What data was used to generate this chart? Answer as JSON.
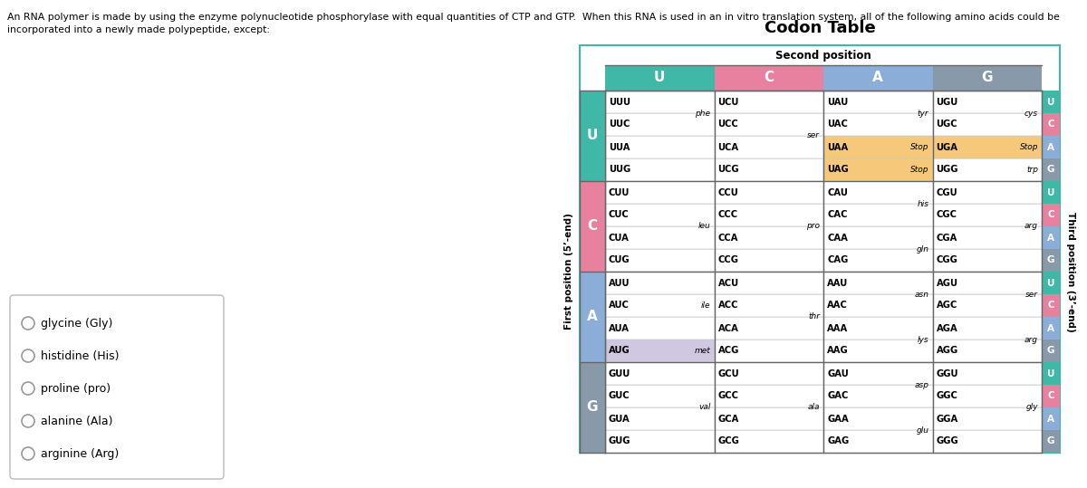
{
  "title": "Codon Table",
  "question_text": "An RNA polymer is made by using the enzyme polynucleotide phosphorylase with equal quantities of CTP and GTP.  When this RNA is used in an in vitro translation system, all of the following amino acids could be\nincorporated into a newly made polypeptide, except:",
  "second_position_label": "Second position",
  "first_position_label": "First position (5’-end)",
  "third_position_label": "Third position (3’-end)",
  "col_headers": [
    "U",
    "C",
    "A",
    "G"
  ],
  "col_header_colors": [
    "#40b8a8",
    "#e880a0",
    "#8aaed8",
    "#889aaa"
  ],
  "row_header_colors": [
    "#40b8a8",
    "#e880a0",
    "#8aaed8",
    "#889aaa"
  ],
  "third_pos_colors": [
    "#40b8a8",
    "#e880a0",
    "#8aaed8",
    "#889aaa"
  ],
  "codons": [
    [
      "UUU",
      "UUC",
      "UUA",
      "UUG"
    ],
    [
      "UCU",
      "UCC",
      "UCA",
      "UCG"
    ],
    [
      "UAU",
      "UAC",
      "UAA",
      "UAG"
    ],
    [
      "UGU",
      "UGC",
      "UGA",
      "UGG"
    ],
    [
      "CUU",
      "CUC",
      "CUA",
      "CUG"
    ],
    [
      "CCU",
      "CCC",
      "CCA",
      "CCG"
    ],
    [
      "CAU",
      "CAC",
      "CAA",
      "CAG"
    ],
    [
      "CGU",
      "CGC",
      "CGA",
      "CGG"
    ],
    [
      "AUU",
      "AUC",
      "AUA",
      "AUG"
    ],
    [
      "ACU",
      "ACC",
      "ACA",
      "ACG"
    ],
    [
      "AAU",
      "AAC",
      "AAA",
      "AAG"
    ],
    [
      "AGU",
      "AGC",
      "AGA",
      "AGG"
    ],
    [
      "GUU",
      "GUC",
      "GUA",
      "GUG"
    ],
    [
      "GCU",
      "GCC",
      "GCA",
      "GCG"
    ],
    [
      "GAU",
      "GAC",
      "GAA",
      "GAG"
    ],
    [
      "GGU",
      "GGC",
      "GGA",
      "GGG"
    ]
  ],
  "amino_acids_per_block": [
    {
      "rows": [
        0,
        1
      ],
      "aa": "phe",
      "col": 0
    },
    {
      "rows": [
        0,
        1,
        2,
        3
      ],
      "aa": "ser",
      "col": 1
    },
    {
      "rows": [
        0,
        1
      ],
      "aa": "tyr",
      "col": 2
    },
    {
      "rows": [
        2
      ],
      "aa": "Stop",
      "col": 2
    },
    {
      "rows": [
        3
      ],
      "aa": "Stop",
      "col": 2
    },
    {
      "rows": [
        0,
        1
      ],
      "aa": "cys",
      "col": 3
    },
    {
      "rows": [
        2
      ],
      "aa": "Stop",
      "col": 3
    },
    {
      "rows": [
        3
      ],
      "aa": "trp",
      "col": 3
    },
    {
      "rows": [
        0,
        1,
        2,
        3
      ],
      "aa": "leu",
      "col": 4
    },
    {
      "rows": [
        0,
        1,
        2,
        3
      ],
      "aa": "pro",
      "col": 5
    },
    {
      "rows": [
        0,
        1
      ],
      "aa": "his",
      "col": 6
    },
    {
      "rows": [
        2,
        3
      ],
      "aa": "gln",
      "col": 6
    },
    {
      "rows": [
        0,
        1,
        2,
        3
      ],
      "aa": "arg",
      "col": 7
    },
    {
      "rows": [
        0,
        1,
        2
      ],
      "aa": "ile",
      "col": 8
    },
    {
      "rows": [
        3
      ],
      "aa": "met",
      "col": 8
    },
    {
      "rows": [
        0,
        1,
        2,
        3
      ],
      "aa": "thr",
      "col": 9
    },
    {
      "rows": [
        0,
        1
      ],
      "aa": "asn",
      "col": 10
    },
    {
      "rows": [
        2,
        3
      ],
      "aa": "lys",
      "col": 10
    },
    {
      "rows": [
        0,
        1
      ],
      "aa": "ser",
      "col": 11
    },
    {
      "rows": [
        2,
        3
      ],
      "aa": "arg",
      "col": 11
    },
    {
      "rows": [
        0,
        1,
        2,
        3
      ],
      "aa": "val",
      "col": 12
    },
    {
      "rows": [
        0,
        1,
        2,
        3
      ],
      "aa": "ala",
      "col": 13
    },
    {
      "rows": [
        0,
        1
      ],
      "aa": "asp",
      "col": 14
    },
    {
      "rows": [
        2,
        3
      ],
      "aa": "glu",
      "col": 14
    },
    {
      "rows": [
        0,
        1,
        2,
        3
      ],
      "aa": "gly",
      "col": 15
    }
  ],
  "stop_highlight_codons": [
    "UAA",
    "UAG",
    "UGA"
  ],
  "aug_codon": "AUG",
  "choices": [
    "glycine (Gly)",
    "histidine (His)",
    "proline (pro)",
    "alanine (Ala)",
    "arginine (Arg)"
  ],
  "bg_color": "#ffffff",
  "stop_highlight_color": "#f5c87a",
  "aug_highlight_color": "#d0c8e0",
  "table_border_color": "#40b8a8"
}
